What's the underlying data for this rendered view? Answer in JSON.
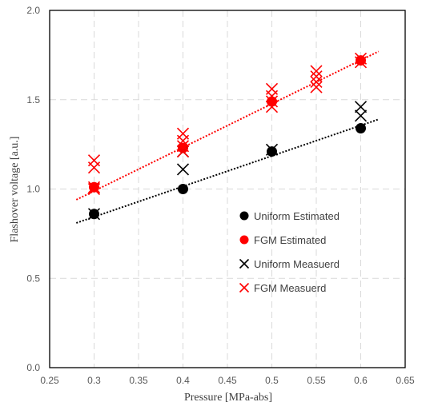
{
  "chart_data": {
    "type": "scatter",
    "xlabel": "Pressure [MPa-abs]",
    "ylabel": "Flashover voltage [a.u.]",
    "xlim": [
      0.25,
      0.65
    ],
    "ylim": [
      0.0,
      2.0
    ],
    "x_ticks": [
      "0.25",
      "0.3",
      "0.35",
      "0.4",
      "0.45",
      "0.5",
      "0.55",
      "0.6",
      "0.65"
    ],
    "y_ticks": [
      "0.0",
      "0.5",
      "1.0",
      "1.5",
      "2.0"
    ],
    "grid": true,
    "legend_position": "center-right",
    "series": [
      {
        "name": "Uniform Estimated",
        "marker": "circle",
        "color": "#000000",
        "points": [
          [
            0.3,
            0.86
          ],
          [
            0.4,
            1.0
          ],
          [
            0.5,
            1.21
          ],
          [
            0.6,
            1.34
          ]
        ]
      },
      {
        "name": "FGM Estimated",
        "marker": "circle",
        "color": "#ff0000",
        "points": [
          [
            0.3,
            1.01
          ],
          [
            0.4,
            1.23
          ],
          [
            0.5,
            1.49
          ],
          [
            0.6,
            1.72
          ]
        ]
      },
      {
        "name": "Uniform Measuerd",
        "marker": "x",
        "color": "#000000",
        "points": [
          [
            0.3,
            0.86
          ],
          [
            0.4,
            1.11
          ],
          [
            0.4,
            1.21
          ],
          [
            0.5,
            1.22
          ],
          [
            0.6,
            1.41
          ],
          [
            0.6,
            1.46
          ]
        ]
      },
      {
        "name": "FGM Measuerd",
        "marker": "x",
        "color": "#ff0000",
        "points": [
          [
            0.3,
            1.0
          ],
          [
            0.3,
            1.01
          ],
          [
            0.3,
            1.12
          ],
          [
            0.3,
            1.16
          ],
          [
            0.4,
            1.21
          ],
          [
            0.4,
            1.24
          ],
          [
            0.4,
            1.27
          ],
          [
            0.4,
            1.31
          ],
          [
            0.5,
            1.46
          ],
          [
            0.5,
            1.49
          ],
          [
            0.5,
            1.52
          ],
          [
            0.5,
            1.56
          ],
          [
            0.55,
            1.57
          ],
          [
            0.55,
            1.6
          ],
          [
            0.55,
            1.63
          ],
          [
            0.55,
            1.66
          ],
          [
            0.6,
            1.71
          ],
          [
            0.6,
            1.73
          ]
        ]
      }
    ],
    "trendlines": [
      {
        "color": "#000000",
        "x": [
          0.28,
          0.62
        ],
        "y": [
          0.81,
          1.39
        ]
      },
      {
        "color": "#ff0000",
        "x": [
          0.28,
          0.62
        ],
        "y": [
          0.94,
          1.77
        ]
      }
    ]
  }
}
